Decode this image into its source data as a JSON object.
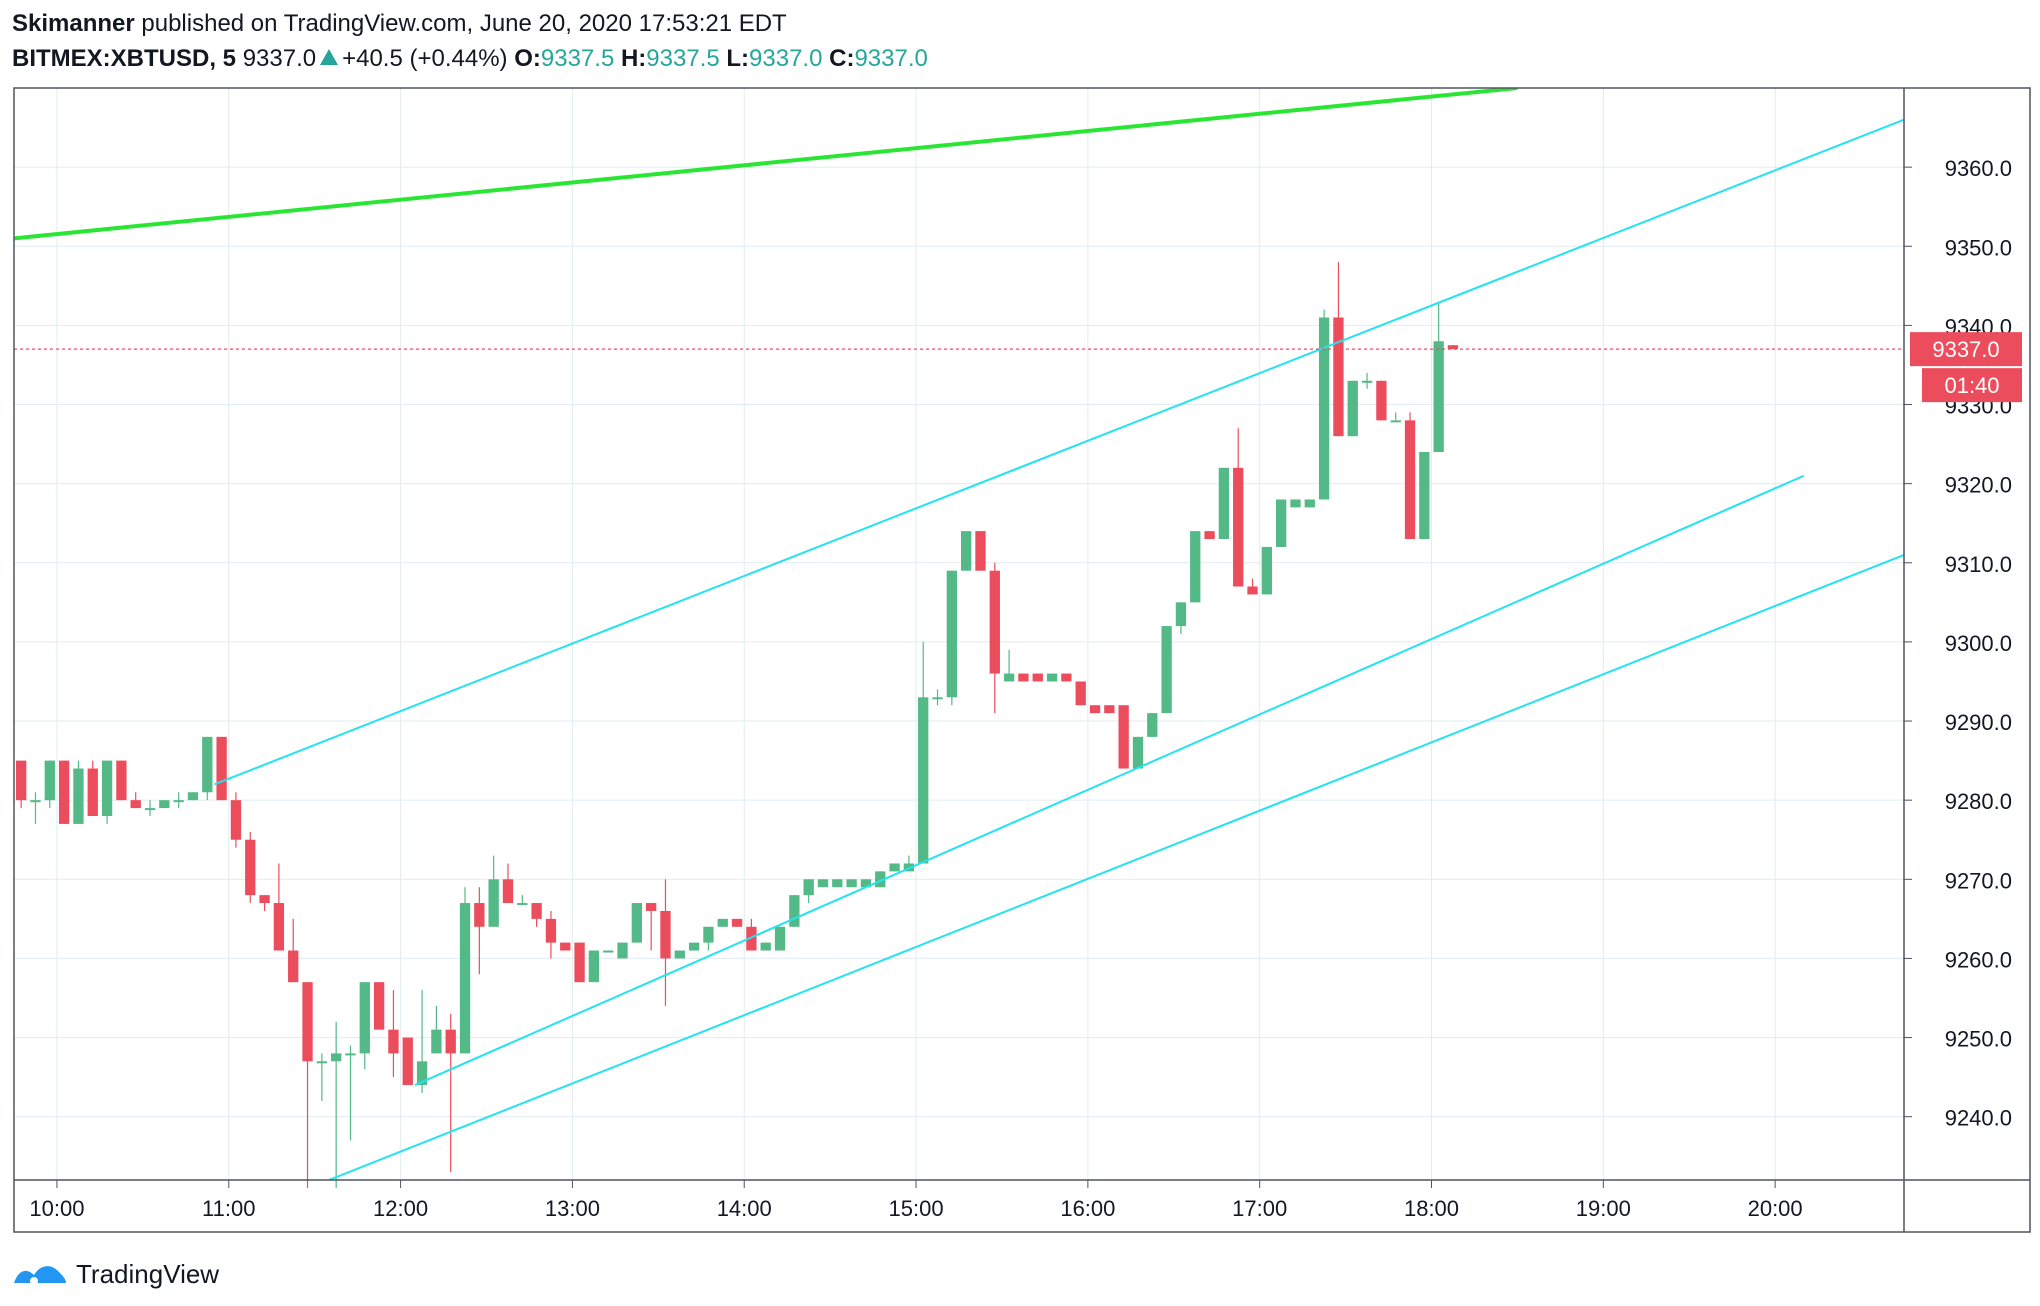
{
  "header": {
    "author": "Skimanner",
    "published": "published on TradingView.com, June 20, 2020 17:53:21 EDT",
    "symbol": "BITMEX:XBTUSD, 5",
    "last": "9337.0",
    "change": "+40.5 (+0.44%)",
    "o_label": "O:",
    "o_value": "9337.5",
    "h_label": "H:",
    "h_value": "9337.5",
    "l_label": "L:",
    "l_value": "9337.0",
    "c_label": "C:",
    "c_value": "9337.0"
  },
  "footer": {
    "brand": "TradingView",
    "icon": "tradingview-logo-icon"
  },
  "colors": {
    "up": "#53b987",
    "down": "#eb4d5c",
    "cyan": "#22e3f0",
    "green": "#29e633",
    "grid": "#e1ecf2",
    "price_line": "#eb4d5c"
  },
  "chart_data": {
    "type": "candlestick",
    "title": "",
    "xlabel": "",
    "ylabel": "",
    "interval_minutes": 5,
    "x_ticks": [
      "10:00",
      "11:00",
      "12:00",
      "13:00",
      "14:00",
      "15:00",
      "16:00",
      "17:00",
      "18:00",
      "19:00",
      "20:00"
    ],
    "y_ticks": [
      9240.0,
      9250.0,
      9260.0,
      9270.0,
      9280.0,
      9290.0,
      9300.0,
      9310.0,
      9320.0,
      9330.0,
      9340.0,
      9350.0,
      9360.0
    ],
    "ylim": [
      9232,
      9370
    ],
    "xlim": [
      "09:45",
      "20:45"
    ],
    "grid": true,
    "last_price_label": "9337.0",
    "countdown_label": "01:40",
    "last_price": 9337.0,
    "candles": [
      {
        "t": "09:45",
        "o": 9285,
        "h": 9285,
        "l": 9279,
        "c": 9280
      },
      {
        "t": "09:50",
        "o": 9280,
        "h": 9281,
        "l": 9277,
        "c": 9280
      },
      {
        "t": "09:55",
        "o": 9280,
        "h": 9285,
        "l": 9279,
        "c": 9285
      },
      {
        "t": "10:00",
        "o": 9285,
        "h": 9285,
        "l": 9277,
        "c": 9277
      },
      {
        "t": "10:05",
        "o": 9277,
        "h": 9285,
        "l": 9277,
        "c": 9284
      },
      {
        "t": "10:10",
        "o": 9284,
        "h": 9285,
        "l": 9278,
        "c": 9278
      },
      {
        "t": "10:15",
        "o": 9278,
        "h": 9285,
        "l": 9277,
        "c": 9285
      },
      {
        "t": "10:20",
        "o": 9285,
        "h": 9285,
        "l": 9280,
        "c": 9280
      },
      {
        "t": "10:25",
        "o": 9280,
        "h": 9281,
        "l": 9279,
        "c": 9279
      },
      {
        "t": "10:30",
        "o": 9279,
        "h": 9280,
        "l": 9278,
        "c": 9279
      },
      {
        "t": "10:35",
        "o": 9279,
        "h": 9280,
        "l": 9279,
        "c": 9280
      },
      {
        "t": "10:40",
        "o": 9280,
        "h": 9281,
        "l": 9279,
        "c": 9280
      },
      {
        "t": "10:45",
        "o": 9280,
        "h": 9281,
        "l": 9280,
        "c": 9281
      },
      {
        "t": "10:50",
        "o": 9281,
        "h": 9288,
        "l": 9280,
        "c": 9288
      },
      {
        "t": "10:55",
        "o": 9288,
        "h": 9288,
        "l": 9280,
        "c": 9280
      },
      {
        "t": "11:00",
        "o": 9280,
        "h": 9281,
        "l": 9274,
        "c": 9275
      },
      {
        "t": "11:05",
        "o": 9275,
        "h": 9276,
        "l": 9267,
        "c": 9268
      },
      {
        "t": "11:10",
        "o": 9268,
        "h": 9268,
        "l": 9266,
        "c": 9267
      },
      {
        "t": "11:15",
        "o": 9267,
        "h": 9272,
        "l": 9261,
        "c": 9261
      },
      {
        "t": "11:20",
        "o": 9261,
        "h": 9265,
        "l": 9257,
        "c": 9257
      },
      {
        "t": "11:25",
        "o": 9257,
        "h": 9257,
        "l": 9231,
        "c": 9247
      },
      {
        "t": "11:30",
        "o": 9247,
        "h": 9248,
        "l": 9242,
        "c": 9247
      },
      {
        "t": "11:35",
        "o": 9247,
        "h": 9252,
        "l": 9231,
        "c": 9248
      },
      {
        "t": "11:40",
        "o": 9248,
        "h": 9249,
        "l": 9237,
        "c": 9248
      },
      {
        "t": "11:45",
        "o": 9248,
        "h": 9257,
        "l": 9246,
        "c": 9257
      },
      {
        "t": "11:50",
        "o": 9257,
        "h": 9257,
        "l": 9251,
        "c": 9251
      },
      {
        "t": "11:55",
        "o": 9251,
        "h": 9256,
        "l": 9245,
        "c": 9248
      },
      {
        "t": "12:00",
        "o": 9250,
        "h": 9250,
        "l": 9244,
        "c": 9244
      },
      {
        "t": "12:05",
        "o": 9244,
        "h": 9256,
        "l": 9243,
        "c": 9247
      },
      {
        "t": "12:10",
        "o": 9248,
        "h": 9254,
        "l": 9248,
        "c": 9251
      },
      {
        "t": "12:15",
        "o": 9251,
        "h": 9253,
        "l": 9233,
        "c": 9248
      },
      {
        "t": "12:20",
        "o": 9248,
        "h": 9269,
        "l": 9248,
        "c": 9267
      },
      {
        "t": "12:25",
        "o": 9267,
        "h": 9269,
        "l": 9258,
        "c": 9264
      },
      {
        "t": "12:30",
        "o": 9264,
        "h": 9273,
        "l": 9264,
        "c": 9270
      },
      {
        "t": "12:35",
        "o": 9270,
        "h": 9272,
        "l": 9267,
        "c": 9267
      },
      {
        "t": "12:40",
        "o": 9267,
        "h": 9268,
        "l": 9267,
        "c": 9267
      },
      {
        "t": "12:45",
        "o": 9267,
        "h": 9267,
        "l": 9264,
        "c": 9265
      },
      {
        "t": "12:50",
        "o": 9265,
        "h": 9266,
        "l": 9260,
        "c": 9262
      },
      {
        "t": "12:55",
        "o": 9262,
        "h": 9262,
        "l": 9261,
        "c": 9261
      },
      {
        "t": "13:00",
        "o": 9262,
        "h": 9262,
        "l": 9257,
        "c": 9257
      },
      {
        "t": "13:05",
        "o": 9257,
        "h": 9261,
        "l": 9257,
        "c": 9261
      },
      {
        "t": "13:10",
        "o": 9261,
        "h": 9261,
        "l": 9261,
        "c": 9261
      },
      {
        "t": "13:15",
        "o": 9260,
        "h": 9262,
        "l": 9260,
        "c": 9262
      },
      {
        "t": "13:20",
        "o": 9262,
        "h": 9267,
        "l": 9262,
        "c": 9267
      },
      {
        "t": "13:25",
        "o": 9267,
        "h": 9267,
        "l": 9261,
        "c": 9266
      },
      {
        "t": "13:30",
        "o": 9266,
        "h": 9270,
        "l": 9254,
        "c": 9260
      },
      {
        "t": "13:35",
        "o": 9260,
        "h": 9261,
        "l": 9260,
        "c": 9261
      },
      {
        "t": "13:40",
        "o": 9261,
        "h": 9262,
        "l": 9261,
        "c": 9262
      },
      {
        "t": "13:45",
        "o": 9262,
        "h": 9264,
        "l": 9261,
        "c": 9264
      },
      {
        "t": "13:50",
        "o": 9264,
        "h": 9265,
        "l": 9264,
        "c": 9265
      },
      {
        "t": "13:55",
        "o": 9265,
        "h": 9265,
        "l": 9264,
        "c": 9264
      },
      {
        "t": "14:00",
        "o": 9264,
        "h": 9265,
        "l": 9261,
        "c": 9261
      },
      {
        "t": "14:05",
        "o": 9261,
        "h": 9262,
        "l": 9261,
        "c": 9262
      },
      {
        "t": "14:10",
        "o": 9261,
        "h": 9264,
        "l": 9261,
        "c": 9264
      },
      {
        "t": "14:15",
        "o": 9264,
        "h": 9268,
        "l": 9264,
        "c": 9268
      },
      {
        "t": "14:20",
        "o": 9268,
        "h": 9270,
        "l": 9267,
        "c": 9270
      },
      {
        "t": "14:25",
        "o": 9269,
        "h": 9270,
        "l": 9269,
        "c": 9270
      },
      {
        "t": "14:30",
        "o": 9269,
        "h": 9270,
        "l": 9269,
        "c": 9270
      },
      {
        "t": "14:35",
        "o": 9269,
        "h": 9270,
        "l": 9269,
        "c": 9270
      },
      {
        "t": "14:40",
        "o": 9269,
        "h": 9270,
        "l": 9269,
        "c": 9270
      },
      {
        "t": "14:45",
        "o": 9269,
        "h": 9271,
        "l": 9269,
        "c": 9271
      },
      {
        "t": "14:50",
        "o": 9271,
        "h": 9272,
        "l": 9271,
        "c": 9272
      },
      {
        "t": "14:55",
        "o": 9271,
        "h": 9273,
        "l": 9271,
        "c": 9272
      },
      {
        "t": "15:00",
        "o": 9272,
        "h": 9300,
        "l": 9272,
        "c": 9293
      },
      {
        "t": "15:05",
        "o": 9293,
        "h": 9294,
        "l": 9292,
        "c": 9293
      },
      {
        "t": "15:10",
        "o": 9293,
        "h": 9309,
        "l": 9292,
        "c": 9309
      },
      {
        "t": "15:15",
        "o": 9309,
        "h": 9314,
        "l": 9309,
        "c": 9314
      },
      {
        "t": "15:20",
        "o": 9314,
        "h": 9314,
        "l": 9309,
        "c": 9309
      },
      {
        "t": "15:25",
        "o": 9309,
        "h": 9310,
        "l": 9291,
        "c": 9296
      },
      {
        "t": "15:30",
        "o": 9295,
        "h": 9299,
        "l": 9295,
        "c": 9296
      },
      {
        "t": "15:35",
        "o": 9296,
        "h": 9296,
        "l": 9295,
        "c": 9295
      },
      {
        "t": "15:40",
        "o": 9296,
        "h": 9296,
        "l": 9295,
        "c": 9295
      },
      {
        "t": "15:45",
        "o": 9295,
        "h": 9296,
        "l": 9295,
        "c": 9296
      },
      {
        "t": "15:50",
        "o": 9296,
        "h": 9296,
        "l": 9295,
        "c": 9295
      },
      {
        "t": "15:55",
        "o": 9295,
        "h": 9295,
        "l": 9292,
        "c": 9292
      },
      {
        "t": "16:00",
        "o": 9292,
        "h": 9292,
        "l": 9291,
        "c": 9291
      },
      {
        "t": "16:05",
        "o": 9292,
        "h": 9292,
        "l": 9291,
        "c": 9291
      },
      {
        "t": "16:10",
        "o": 9292,
        "h": 9292,
        "l": 9284,
        "c": 9284
      },
      {
        "t": "16:15",
        "o": 9284,
        "h": 9288,
        "l": 9284,
        "c": 9288
      },
      {
        "t": "16:20",
        "o": 9288,
        "h": 9291,
        "l": 9288,
        "c": 9291
      },
      {
        "t": "16:25",
        "o": 9291,
        "h": 9302,
        "l": 9291,
        "c": 9302
      },
      {
        "t": "16:30",
        "o": 9302,
        "h": 9305,
        "l": 9301,
        "c": 9305
      },
      {
        "t": "16:35",
        "o": 9305,
        "h": 9314,
        "l": 9305,
        "c": 9314
      },
      {
        "t": "16:40",
        "o": 9314,
        "h": 9314,
        "l": 9313,
        "c": 9313
      },
      {
        "t": "16:45",
        "o": 9313,
        "h": 9322,
        "l": 9313,
        "c": 9322
      },
      {
        "t": "16:50",
        "o": 9322,
        "h": 9327,
        "l": 9307,
        "c": 9307
      },
      {
        "t": "16:55",
        "o": 9307,
        "h": 9308,
        "l": 9306,
        "c": 9306
      },
      {
        "t": "17:00",
        "o": 9306,
        "h": 9312,
        "l": 9306,
        "c": 9312
      },
      {
        "t": "17:05",
        "o": 9312,
        "h": 9318,
        "l": 9312,
        "c": 9318
      },
      {
        "t": "17:10",
        "o": 9317,
        "h": 9318,
        "l": 9317,
        "c": 9318
      },
      {
        "t": "17:15",
        "o": 9317,
        "h": 9318,
        "l": 9317,
        "c": 9318
      },
      {
        "t": "17:20",
        "o": 9318,
        "h": 9342,
        "l": 9318,
        "c": 9341
      },
      {
        "t": "17:25",
        "o": 9341,
        "h": 9348,
        "l": 9326,
        "c": 9326
      },
      {
        "t": "17:30",
        "o": 9326,
        "h": 9333,
        "l": 9326,
        "c": 9333
      },
      {
        "t": "17:35",
        "o": 9333,
        "h": 9334,
        "l": 9332,
        "c": 9333
      },
      {
        "t": "17:40",
        "o": 9333,
        "h": 9333,
        "l": 9328,
        "c": 9328
      },
      {
        "t": "17:45",
        "o": 9328,
        "h": 9329,
        "l": 9328,
        "c": 9328
      },
      {
        "t": "17:50",
        "o": 9328,
        "h": 9329,
        "l": 9313,
        "c": 9313
      },
      {
        "t": "17:55",
        "o": 9313,
        "h": 9324,
        "l": 9313,
        "c": 9324
      },
      {
        "t": "18:00",
        "o": 9324,
        "h": 9343,
        "l": 9324,
        "c": 9338
      },
      {
        "t": "18:05",
        "o": 9337.5,
        "h": 9337.5,
        "l": 9337.0,
        "c": 9337.0
      }
    ],
    "trendlines": [
      {
        "color": "green",
        "from": [
          "09:45",
          9351
        ],
        "to": [
          "18:30",
          9370
        ]
      },
      {
        "color": "cyan",
        "from": [
          "10:55",
          9282
        ],
        "to": [
          "20:45",
          9366
        ]
      },
      {
        "color": "cyan",
        "from": [
          "12:05",
          9244
        ],
        "to": [
          "20:10",
          9321
        ]
      },
      {
        "color": "cyan",
        "from": [
          "11:35",
          9232
        ],
        "to": [
          "20:45",
          9311
        ]
      }
    ]
  }
}
